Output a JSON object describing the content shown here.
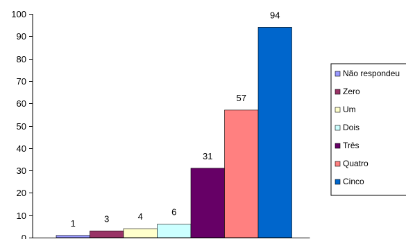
{
  "chart_data": {
    "type": "bar",
    "title": "",
    "xlabel": "",
    "ylabel": "",
    "ylim": [
      0,
      100
    ],
    "yticks": [
      0,
      10,
      20,
      30,
      40,
      50,
      60,
      70,
      80,
      90,
      100
    ],
    "grid": false,
    "legend_position": "right",
    "series": [
      {
        "name": "Não respondeu",
        "value": 1,
        "color": "#9999ff"
      },
      {
        "name": "Zero",
        "value": 3,
        "color": "#993366"
      },
      {
        "name": "Um",
        "value": 4,
        "color": "#ffffcc"
      },
      {
        "name": "Dois",
        "value": 6,
        "color": "#ccffff"
      },
      {
        "name": "Três",
        "value": 31,
        "color": "#660066"
      },
      {
        "name": "Quatro",
        "value": 57,
        "color": "#ff8080"
      },
      {
        "name": "Cinco",
        "value": 94,
        "color": "#0066cc"
      }
    ]
  }
}
